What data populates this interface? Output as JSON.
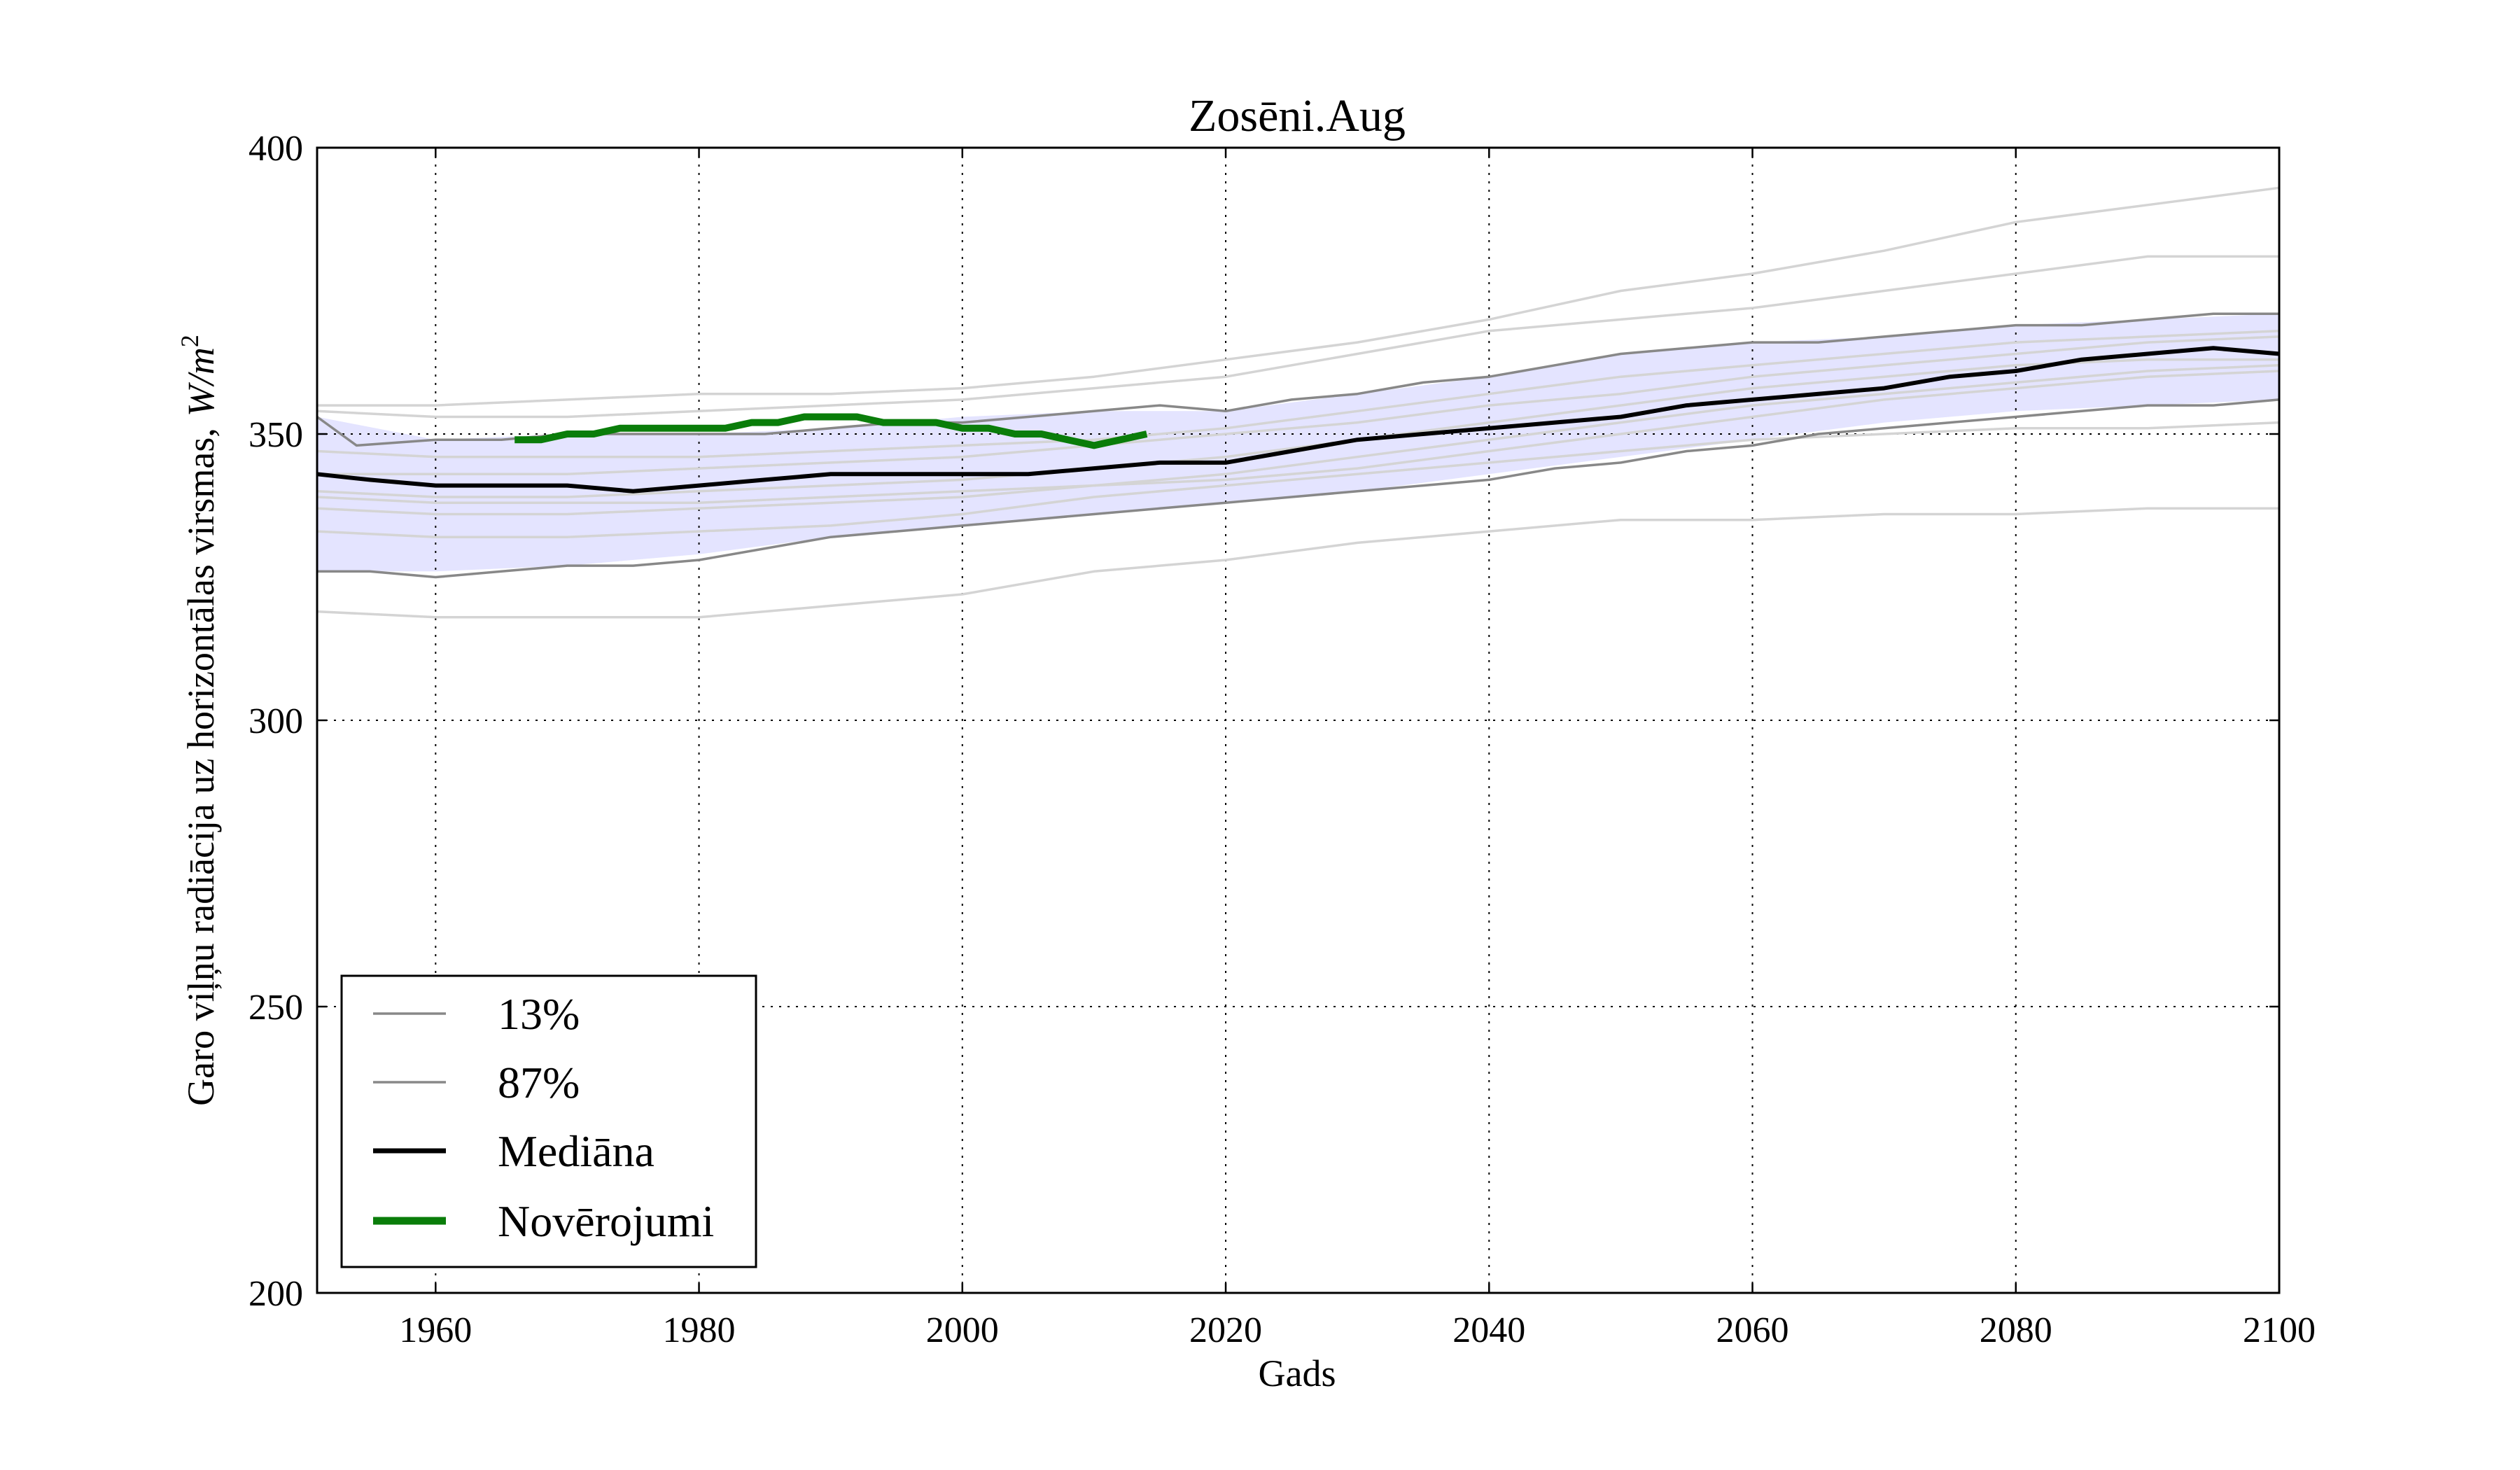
{
  "chart_data": {
    "type": "line",
    "title": "Zosēni.Aug",
    "xlabel": "Gads",
    "ylabel": "Garo viļņu radiācija uz horizontālas virsmas,",
    "ylabel_unit_italic": "W/m",
    "ylabel_unit_sup": "2",
    "xlim": [
      1951,
      2100
    ],
    "ylim": [
      200,
      400
    ],
    "x_ticks": [
      "1960",
      "1980",
      "2000",
      "2020",
      "2040",
      "2060",
      "2080",
      "2100"
    ],
    "x_tick_values": [
      1960,
      1980,
      2000,
      2020,
      2040,
      2060,
      2080,
      2100
    ],
    "y_ticks": [
      "200",
      "250",
      "300",
      "350",
      "400"
    ],
    "y_tick_values": [
      200,
      250,
      300,
      350,
      400
    ],
    "grid": true,
    "legend_position": "lower-left",
    "colors": {
      "band_fill": "#e4e4ff",
      "percentile": "#888888",
      "median": "#000000",
      "observations": "#0a7d0a",
      "ensemble": "#d4d4d4"
    },
    "band": {
      "x": [
        1951,
        1960,
        1970,
        1980,
        1990,
        2000,
        2010,
        2020,
        2030,
        2040,
        2050,
        2060,
        2070,
        2080,
        2090,
        2100
      ],
      "lower": [
        326,
        326,
        327,
        329,
        332,
        334,
        336,
        338,
        340,
        343,
        346,
        349,
        352,
        354,
        355,
        356
      ],
      "upper": [
        353,
        349,
        350,
        350,
        351,
        353,
        354,
        354,
        357,
        360,
        364,
        366,
        367,
        369,
        370,
        371
      ]
    },
    "series": [
      {
        "name": "13%",
        "role": "percentile",
        "x": [
          1951,
          1955,
          1960,
          1965,
          1970,
          1975,
          1980,
          1985,
          1990,
          1995,
          2000,
          2005,
          2010,
          2015,
          2020,
          2025,
          2030,
          2035,
          2040,
          2045,
          2050,
          2055,
          2060,
          2065,
          2070,
          2075,
          2080,
          2085,
          2090,
          2095,
          2100
        ],
        "y": [
          326,
          326,
          325,
          326,
          327,
          327,
          328,
          330,
          332,
          333,
          334,
          335,
          336,
          337,
          338,
          339,
          340,
          341,
          342,
          344,
          345,
          347,
          348,
          350,
          351,
          352,
          353,
          354,
          355,
          355,
          356
        ]
      },
      {
        "name": "87%",
        "role": "percentile",
        "x": [
          1951,
          1954,
          1960,
          1965,
          1970,
          1975,
          1980,
          1985,
          1990,
          1995,
          2000,
          2005,
          2010,
          2015,
          2020,
          2025,
          2030,
          2035,
          2040,
          2045,
          2050,
          2055,
          2060,
          2065,
          2070,
          2075,
          2080,
          2085,
          2090,
          2095,
          2100
        ],
        "y": [
          353,
          348,
          349,
          349,
          350,
          350,
          350,
          350,
          351,
          352,
          352,
          353,
          354,
          355,
          354,
          356,
          357,
          359,
          360,
          362,
          364,
          365,
          366,
          366,
          367,
          368,
          369,
          369,
          370,
          371,
          371
        ]
      },
      {
        "name": "Mediāna",
        "role": "median",
        "x": [
          1951,
          1955,
          1960,
          1965,
          1970,
          1975,
          1980,
          1985,
          1990,
          1995,
          2000,
          2005,
          2010,
          2015,
          2020,
          2025,
          2030,
          2035,
          2040,
          2045,
          2050,
          2055,
          2060,
          2065,
          2070,
          2075,
          2080,
          2085,
          2090,
          2095,
          2100
        ],
        "y": [
          343,
          342,
          341,
          341,
          341,
          340,
          341,
          342,
          343,
          343,
          343,
          343,
          344,
          345,
          345,
          347,
          349,
          350,
          351,
          352,
          353,
          355,
          356,
          357,
          358,
          360,
          361,
          363,
          364,
          365,
          364
        ]
      },
      {
        "name": "Novērojumi",
        "role": "observations",
        "x": [
          1966,
          1968,
          1970,
          1972,
          1974,
          1976,
          1978,
          1980,
          1982,
          1984,
          1986,
          1988,
          1990,
          1992,
          1994,
          1996,
          1998,
          2000,
          2002,
          2004,
          2006,
          2008,
          2010,
          2012,
          2014
        ],
        "y": [
          349,
          349,
          350,
          350,
          351,
          351,
          351,
          351,
          351,
          352,
          352,
          353,
          353,
          353,
          352,
          352,
          352,
          351,
          351,
          350,
          350,
          349,
          348,
          349,
          350
        ]
      }
    ],
    "ensemble_members": [
      {
        "x": [
          1951,
          1960,
          1970,
          1980,
          1990,
          2000,
          2010,
          2020,
          2030,
          2040,
          2050,
          2060,
          2070,
          2080,
          2090,
          2100
        ],
        "y": [
          355,
          355,
          356,
          357,
          357,
          358,
          360,
          363,
          366,
          370,
          375,
          378,
          382,
          387,
          390,
          393
        ]
      },
      {
        "x": [
          1951,
          1960,
          1970,
          1980,
          1990,
          2000,
          2010,
          2020,
          2030,
          2040,
          2050,
          2060,
          2070,
          2080,
          2090,
          2100
        ],
        "y": [
          354,
          353,
          353,
          354,
          355,
          356,
          358,
          360,
          364,
          368,
          370,
          372,
          375,
          378,
          381,
          381
        ]
      },
      {
        "x": [
          1951,
          1960,
          1970,
          1980,
          1990,
          2000,
          2010,
          2020,
          2030,
          2040,
          2050,
          2060,
          2070,
          2080,
          2090,
          2100
        ],
        "y": [
          319,
          318,
          318,
          318,
          320,
          322,
          326,
          328,
          331,
          333,
          335,
          335,
          336,
          336,
          337,
          337
        ]
      },
      {
        "x": [
          1951,
          1960,
          1970,
          1980,
          1990,
          2000,
          2010,
          2020,
          2030,
          2040,
          2050,
          2060,
          2070,
          2080,
          2090,
          2100
        ],
        "y": [
          333,
          332,
          332,
          333,
          334,
          336,
          339,
          341,
          343,
          345,
          347,
          349,
          350,
          351,
          351,
          352
        ]
      },
      {
        "x": [
          1951,
          1960,
          1970,
          1980,
          1990,
          2000,
          2010,
          2020,
          2030,
          2040,
          2050,
          2060,
          2070,
          2080,
          2090,
          2100
        ],
        "y": [
          339,
          338,
          338,
          338,
          339,
          340,
          341,
          342,
          344,
          347,
          350,
          353,
          356,
          358,
          360,
          361
        ]
      },
      {
        "x": [
          1951,
          1960,
          1970,
          1980,
          1990,
          2000,
          2010,
          2020,
          2030,
          2040,
          2050,
          2060,
          2070,
          2080,
          2090,
          2100
        ],
        "y": [
          340,
          339,
          339,
          340,
          341,
          342,
          344,
          346,
          349,
          352,
          355,
          358,
          360,
          362,
          363,
          363
        ]
      },
      {
        "x": [
          1951,
          1960,
          1970,
          1980,
          1990,
          2000,
          2010,
          2020,
          2030,
          2040,
          2050,
          2060,
          2070,
          2080,
          2090,
          2100
        ],
        "y": [
          347,
          346,
          346,
          346,
          347,
          348,
          349,
          351,
          354,
          357,
          360,
          362,
          364,
          366,
          367,
          368
        ]
      },
      {
        "x": [
          1951,
          1960,
          1970,
          1980,
          1990,
          2000,
          2010,
          2020,
          2030,
          2040,
          2050,
          2060,
          2070,
          2080,
          2090,
          2100
        ],
        "y": [
          343,
          343,
          343,
          344,
          345,
          346,
          348,
          350,
          352,
          355,
          357,
          360,
          362,
          364,
          366,
          367
        ]
      },
      {
        "x": [
          1951,
          1960,
          1970,
          1980,
          1990,
          2000,
          2010,
          2020,
          2030,
          2040,
          2050,
          2060,
          2070,
          2080,
          2090,
          2100
        ],
        "y": [
          337,
          336,
          336,
          337,
          338,
          339,
          341,
          343,
          346,
          349,
          352,
          355,
          357,
          359,
          361,
          362
        ]
      }
    ]
  }
}
